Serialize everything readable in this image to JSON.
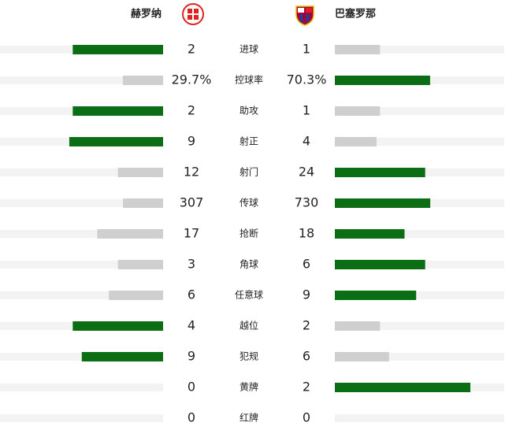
{
  "home": {
    "name": "赫罗纳"
  },
  "away": {
    "name": "巴塞罗那"
  },
  "stats": [
    {
      "label": "进球",
      "home": 2,
      "away": 1
    },
    {
      "label": "控球率",
      "home": 29.7,
      "away": 70.3,
      "home_label": "29.7%",
      "away_label": "70.3%"
    },
    {
      "label": "助攻",
      "home": 2,
      "away": 1
    },
    {
      "label": "射正",
      "home": 9,
      "away": 4
    },
    {
      "label": "射门",
      "home": 12,
      "away": 24
    },
    {
      "label": "传球",
      "home": 307,
      "away": 730
    },
    {
      "label": "抢断",
      "home": 17,
      "away": 18
    },
    {
      "label": "角球",
      "home": 3,
      "away": 6
    },
    {
      "label": "任意球",
      "home": 6,
      "away": 9
    },
    {
      "label": "越位",
      "home": 4,
      "away": 2
    },
    {
      "label": "犯规",
      "home": 9,
      "away": 6
    },
    {
      "label": "黄牌",
      "home": 0,
      "away": 2
    },
    {
      "label": "红牌",
      "home": 0,
      "away": 0
    }
  ]
}
